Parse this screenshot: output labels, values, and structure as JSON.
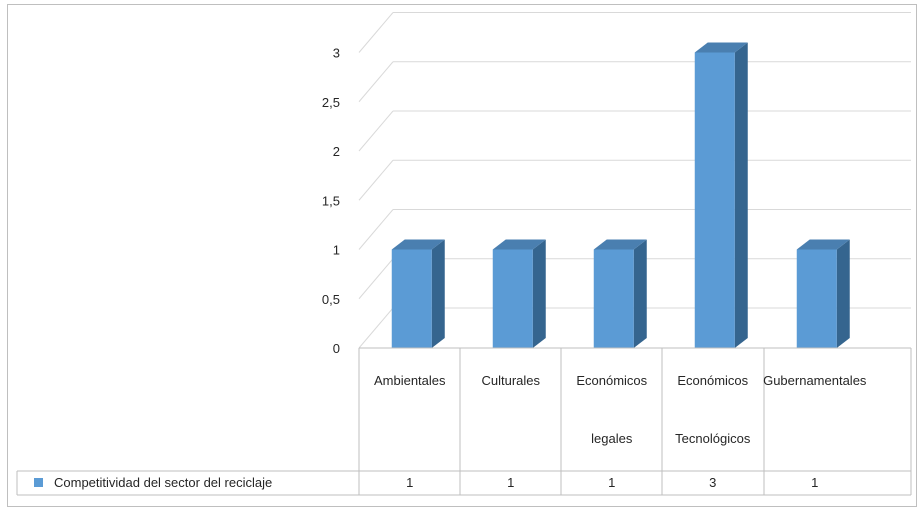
{
  "chart_data": {
    "type": "bar",
    "title": "",
    "xlabel": "",
    "ylabel": "",
    "ylim": [
      0,
      3
    ],
    "yticks": [
      "0",
      "0,5",
      "1",
      "1,5",
      "2",
      "2,5",
      "3"
    ],
    "grid": true,
    "legend": "bottom-left (data table)",
    "categories": [
      [
        "Ambientales"
      ],
      [
        "Culturales"
      ],
      [
        "Económicos",
        "legales"
      ],
      [
        "Económicos",
        "Tecnológicos"
      ],
      [
        "Gubernamentales"
      ]
    ],
    "series": [
      {
        "name": "Competitividad del sector del reciclaje",
        "values": [
          1,
          1,
          1,
          3,
          1
        ],
        "labels": [
          "1",
          "1",
          "1",
          "3",
          "1"
        ]
      }
    ]
  },
  "colors": {
    "bar_front": "#5b9bd5",
    "bar_side": "#35658f",
    "bar_top": "#4a7fb0",
    "grid": "#d9d9d9",
    "table_border": "#bfbfbf"
  }
}
